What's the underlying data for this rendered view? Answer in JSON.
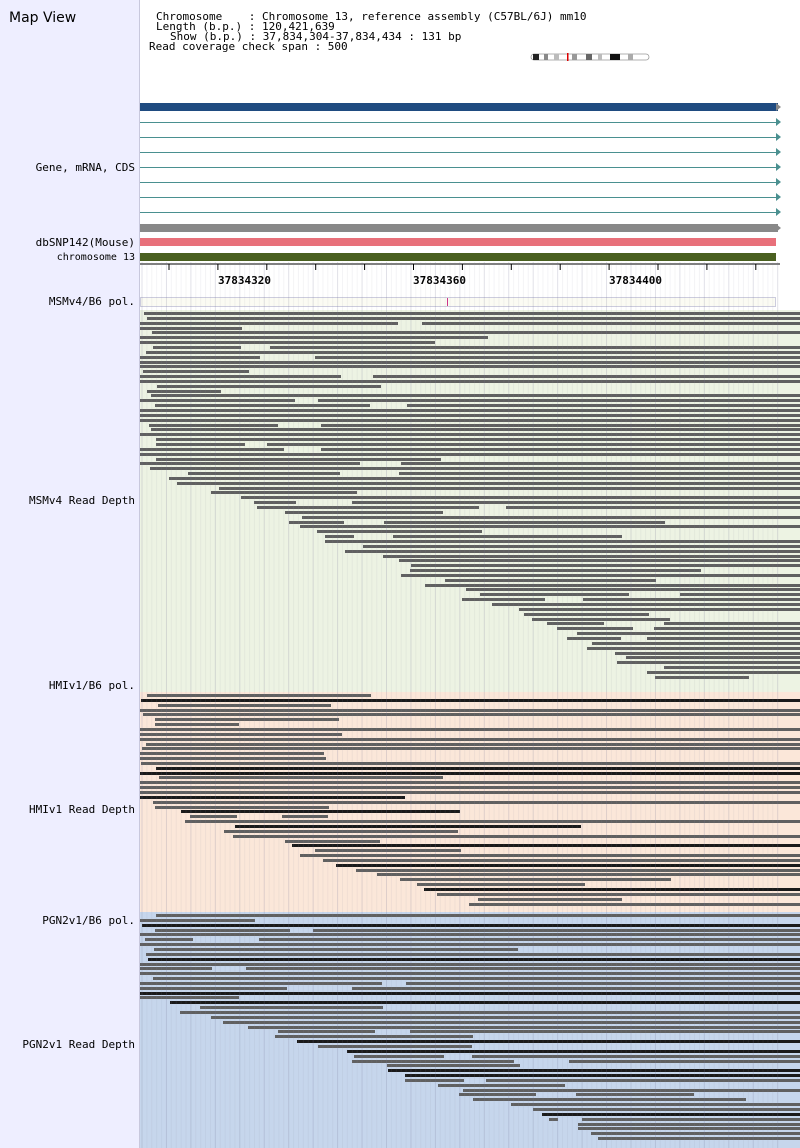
{
  "title": "Map View",
  "header": {
    "chromosome": "Chromosome    : Chromosome 13, reference assembly (C57BL/6J) mm10",
    "length": "Length (b.p.) : 120,421,639",
    "show": "Show (b.p.) : 37,834,304-37,834,434 : 131 bp",
    "span": "Read coverage check span : 500"
  },
  "tracks": {
    "gene": "Gene, mRNA, CDS",
    "snp": "dbSNP142(Mouse)",
    "chrom": "chromosome 13",
    "msm_pol": "MSMv4/B6 pol.",
    "msm_depth": "MSMv4 Read Depth",
    "hmi_pol": "HMIv1/B6 pol.",
    "hmi_depth": "HMIv1 Read Depth",
    "pgn_pol": "PGN2v1/B6 pol.",
    "pgn_depth": "PGN2v1 Read Depth"
  },
  "ruler": {
    "ticks": [
      "37834320",
      "37834360",
      "37834400"
    ]
  },
  "colors": {
    "gene_main": "#1f4b80",
    "gene_line": "#4a9090",
    "gene_gray": "#888888",
    "snp": "#e8707a",
    "chrom": "#4a6020",
    "msm_bg": "#edf3e3",
    "hmi_bg": "#fbe7d9",
    "pgn_bg": "#c6d6ec",
    "read": "#606060",
    "read_dark": "#1a1a1a",
    "snp_mark": "#cc3388"
  },
  "icons": {
    "ideogram": "chromosome-ideogram-icon"
  }
}
